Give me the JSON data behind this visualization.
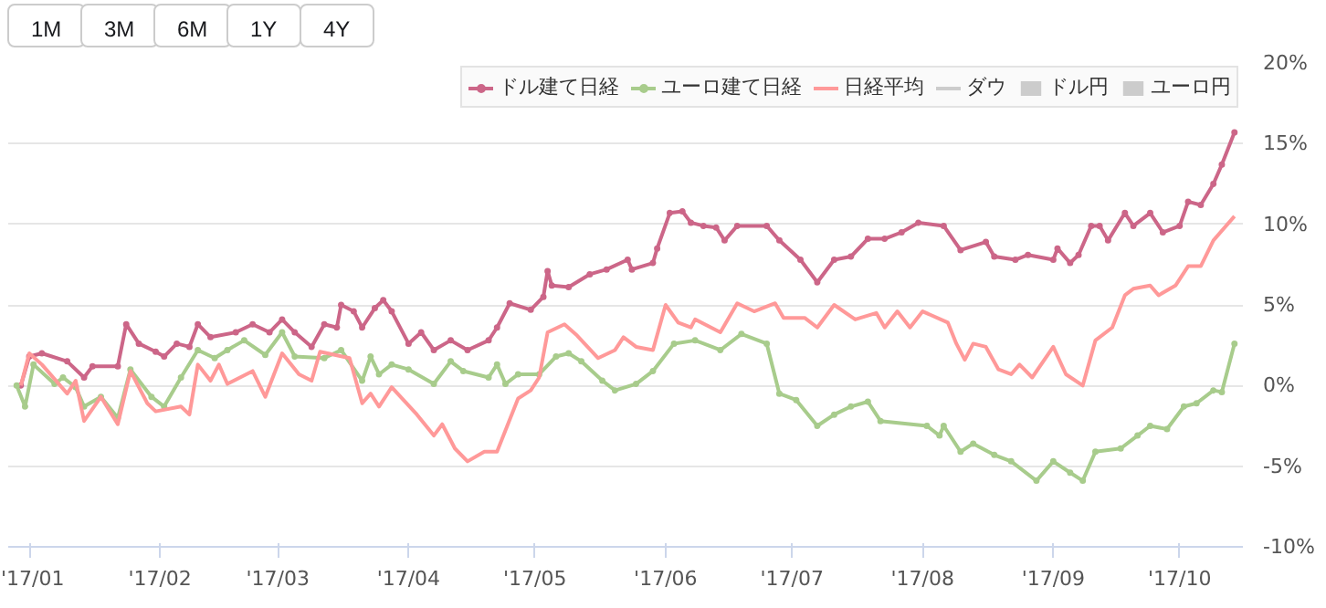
{
  "chart_data": {
    "type": "line",
    "xlim": [
      "2016-12-27",
      "2017-10-16"
    ],
    "ylim": [
      -10,
      20
    ],
    "xticks": [
      {
        "value": "2017-01-01",
        "label": "'17/01"
      },
      {
        "value": "2017-02-01",
        "label": "'17/02"
      },
      {
        "value": "2017-03-01",
        "label": "'17/03"
      },
      {
        "value": "2017-04-01",
        "label": "'17/04"
      },
      {
        "value": "2017-05-01",
        "label": "'17/05"
      },
      {
        "value": "2017-06-01",
        "label": "'17/06"
      },
      {
        "value": "2017-07-01",
        "label": "'17/07"
      },
      {
        "value": "2017-08-01",
        "label": "'17/08"
      },
      {
        "value": "2017-09-01",
        "label": "'17/09"
      },
      {
        "value": "2017-10-01",
        "label": "'17/10"
      }
    ],
    "yticks": [
      {
        "value": -10,
        "label": "-10%"
      },
      {
        "value": -5,
        "label": "-5%"
      },
      {
        "value": 0,
        "label": "0%"
      },
      {
        "value": 5,
        "label": "5%"
      },
      {
        "value": 10,
        "label": "10%"
      },
      {
        "value": 15,
        "label": "15%"
      },
      {
        "value": 20,
        "label": "20%"
      }
    ],
    "grid": "y",
    "legend": "top right",
    "annotations": [
      "1M",
      "3M",
      "6M",
      "1Y",
      "4Y"
    ],
    "series": [
      {
        "name": "ドル建て日経",
        "color": "#cc6688",
        "marker": "circle",
        "x": [
          "2016-12-30",
          "2017-01-01",
          "2017-01-04",
          "2017-01-10",
          "2017-01-14",
          "2017-01-16",
          "2017-01-22",
          "2017-01-24",
          "2017-01-27",
          "2017-01-31",
          "2017-02-02",
          "2017-02-05",
          "2017-02-08",
          "2017-02-10",
          "2017-02-13",
          "2017-02-19",
          "2017-02-23",
          "2017-02-27",
          "2017-03-02",
          "2017-03-05",
          "2017-03-09",
          "2017-03-12",
          "2017-03-15",
          "2017-03-16",
          "2017-03-19",
          "2017-03-21",
          "2017-03-24",
          "2017-03-26",
          "2017-03-28",
          "2017-04-01",
          "2017-04-04",
          "2017-04-07",
          "2017-04-11",
          "2017-04-15",
          "2017-04-20",
          "2017-04-22",
          "2017-04-25",
          "2017-04-30",
          "2017-05-03",
          "2017-05-04",
          "2017-05-05",
          "2017-05-09",
          "2017-05-14",
          "2017-05-18",
          "2017-05-23",
          "2017-05-24",
          "2017-05-29",
          "2017-05-30",
          "2017-06-02",
          "2017-06-05",
          "2017-06-07",
          "2017-06-10",
          "2017-06-13",
          "2017-06-15",
          "2017-06-18",
          "2017-06-25",
          "2017-06-28",
          "2017-07-03",
          "2017-07-07",
          "2017-07-11",
          "2017-07-15",
          "2017-07-19",
          "2017-07-23",
          "2017-07-27",
          "2017-07-31",
          "2017-08-06",
          "2017-08-10",
          "2017-08-16",
          "2017-08-18",
          "2017-08-23",
          "2017-08-26",
          "2017-09-01",
          "2017-09-02",
          "2017-09-05",
          "2017-09-07",
          "2017-09-10",
          "2017-09-12",
          "2017-09-14",
          "2017-09-18",
          "2017-09-20",
          "2017-09-24",
          "2017-09-27",
          "2017-10-01",
          "2017-10-03",
          "2017-10-06",
          "2017-10-09",
          "2017-10-11",
          "2017-10-14"
        ],
        "values": [
          0,
          1.8,
          2.0,
          1.5,
          0.5,
          1.2,
          1.2,
          3.8,
          2.6,
          2.1,
          1.8,
          2.6,
          2.4,
          3.8,
          3.0,
          3.3,
          3.8,
          3.3,
          4.1,
          3.3,
          2.4,
          3.8,
          3.6,
          5.0,
          4.6,
          3.6,
          4.8,
          5.3,
          4.6,
          2.6,
          3.3,
          2.2,
          2.8,
          2.2,
          2.8,
          3.6,
          5.1,
          4.7,
          5.5,
          7.1,
          6.2,
          6.1,
          6.9,
          7.2,
          7.8,
          7.2,
          7.6,
          8.5,
          10.7,
          10.8,
          10.1,
          9.9,
          9.8,
          9.0,
          9.9,
          9.9,
          9.0,
          7.8,
          6.4,
          7.8,
          8.0,
          9.1,
          9.1,
          9.5,
          10.1,
          9.9,
          8.4,
          8.9,
          8.0,
          7.8,
          8.1,
          7.8,
          8.5,
          7.6,
          8.1,
          9.9,
          9.9,
          9.0,
          10.7,
          9.9,
          10.7,
          9.5,
          9.9,
          11.4,
          11.2,
          12.5,
          13.7,
          15.7
        ]
      },
      {
        "name": "ユーロ建て日経",
        "color": "#a8cc8c",
        "marker": "circle",
        "x": [
          "2016-12-29",
          "2016-12-31",
          "2017-01-02",
          "2017-01-07",
          "2017-01-09",
          "2017-01-12",
          "2017-01-14",
          "2017-01-18",
          "2017-01-22",
          "2017-01-25",
          "2017-01-30",
          "2017-02-02",
          "2017-02-06",
          "2017-02-10",
          "2017-02-14",
          "2017-02-17",
          "2017-02-21",
          "2017-02-26",
          "2017-03-02",
          "2017-03-05",
          "2017-03-12",
          "2017-03-16",
          "2017-03-21",
          "2017-03-23",
          "2017-03-25",
          "2017-03-28",
          "2017-04-01",
          "2017-04-07",
          "2017-04-11",
          "2017-04-14",
          "2017-04-20",
          "2017-04-22",
          "2017-04-24",
          "2017-04-27",
          "2017-05-02",
          "2017-05-06",
          "2017-05-09",
          "2017-05-12",
          "2017-05-17",
          "2017-05-20",
          "2017-05-25",
          "2017-05-29",
          "2017-06-03",
          "2017-06-08",
          "2017-06-14",
          "2017-06-19",
          "2017-06-25",
          "2017-06-28",
          "2017-07-02",
          "2017-07-07",
          "2017-07-11",
          "2017-07-15",
          "2017-07-19",
          "2017-07-22",
          "2017-08-02",
          "2017-08-05",
          "2017-08-06",
          "2017-08-10",
          "2017-08-13",
          "2017-08-18",
          "2017-08-22",
          "2017-08-28",
          "2017-09-01",
          "2017-09-05",
          "2017-09-08",
          "2017-09-11",
          "2017-09-17",
          "2017-09-21",
          "2017-09-24",
          "2017-09-28",
          "2017-10-02",
          "2017-10-05",
          "2017-10-09",
          "2017-10-11",
          "2017-10-14"
        ],
        "values": [
          0,
          -1.3,
          1.3,
          0.1,
          0.5,
          -0.1,
          -1.3,
          -0.7,
          -2.0,
          1.0,
          -0.7,
          -1.3,
          0.5,
          2.2,
          1.7,
          2.2,
          2.8,
          1.9,
          3.3,
          1.8,
          1.7,
          2.2,
          0.3,
          1.8,
          0.7,
          1.3,
          1.0,
          0.1,
          1.5,
          0.9,
          0.5,
          1.3,
          0.1,
          0.7,
          0.7,
          1.8,
          2.0,
          1.5,
          0.3,
          -0.3,
          0.1,
          0.9,
          2.6,
          2.8,
          2.2,
          3.2,
          2.6,
          -0.5,
          -0.9,
          -2.5,
          -1.8,
          -1.3,
          -1.0,
          -2.2,
          -2.5,
          -3.1,
          -2.5,
          -4.1,
          -3.6,
          -4.3,
          -4.7,
          -5.9,
          -4.7,
          -5.4,
          -5.9,
          -4.1,
          -3.9,
          -3.1,
          -2.5,
          -2.7,
          -1.3,
          -1.1,
          -0.3,
          -0.4,
          2.6
        ]
      },
      {
        "name": "日経平均",
        "color": "#ff9999",
        "x": [
          "2016-12-30",
          "2017-01-01",
          "2017-01-04",
          "2017-01-10",
          "2017-01-12",
          "2017-01-14",
          "2017-01-18",
          "2017-01-22",
          "2017-01-25",
          "2017-01-29",
          "2017-01-31",
          "2017-02-06",
          "2017-02-08",
          "2017-02-10",
          "2017-02-13",
          "2017-02-15",
          "2017-02-17",
          "2017-02-23",
          "2017-02-26",
          "2017-03-02",
          "2017-03-06",
          "2017-03-09",
          "2017-03-11",
          "2017-03-18",
          "2017-03-21",
          "2017-03-23",
          "2017-03-25",
          "2017-03-28",
          "2017-04-03",
          "2017-04-07",
          "2017-04-09",
          "2017-04-12",
          "2017-04-15",
          "2017-04-19",
          "2017-04-22",
          "2017-04-27",
          "2017-04-30",
          "2017-05-02",
          "2017-05-04",
          "2017-05-08",
          "2017-05-11",
          "2017-05-16",
          "2017-05-20",
          "2017-05-22",
          "2017-05-25",
          "2017-05-29",
          "2017-06-01",
          "2017-06-04",
          "2017-06-07",
          "2017-06-08",
          "2017-06-14",
          "2017-06-18",
          "2017-06-22",
          "2017-06-27",
          "2017-06-29",
          "2017-07-04",
          "2017-07-07",
          "2017-07-11",
          "2017-07-16",
          "2017-07-21",
          "2017-07-23",
          "2017-07-26",
          "2017-07-29",
          "2017-08-01",
          "2017-08-07",
          "2017-08-09",
          "2017-08-11",
          "2017-08-13",
          "2017-08-16",
          "2017-08-19",
          "2017-08-22",
          "2017-08-24",
          "2017-08-27",
          "2017-09-01",
          "2017-09-04",
          "2017-09-08",
          "2017-09-11",
          "2017-09-15",
          "2017-09-18",
          "2017-09-20",
          "2017-09-24",
          "2017-09-26",
          "2017-09-30",
          "2017-10-03",
          "2017-10-06",
          "2017-10-09",
          "2017-10-14"
        ],
        "values": [
          0,
          2.0,
          1.3,
          -0.5,
          0.3,
          -2.2,
          -0.7,
          -2.4,
          0.9,
          -1.1,
          -1.6,
          -1.3,
          -1.8,
          1.3,
          0.3,
          1.3,
          0.1,
          0.9,
          -0.7,
          2.0,
          0.7,
          0.3,
          2.1,
          1.7,
          -1.1,
          -0.5,
          -1.3,
          -0.1,
          -1.8,
          -3.1,
          -2.4,
          -3.9,
          -4.7,
          -4.1,
          -4.1,
          -0.8,
          -0.3,
          0.5,
          3.3,
          3.8,
          3.1,
          1.7,
          2.2,
          3.0,
          2.4,
          2.2,
          5.0,
          3.9,
          3.6,
          4.1,
          3.3,
          5.1,
          4.6,
          5.1,
          4.2,
          4.2,
          3.6,
          5.0,
          4.1,
          4.5,
          3.6,
          4.6,
          3.6,
          4.6,
          3.9,
          2.6,
          1.6,
          2.6,
          2.4,
          1.0,
          0.7,
          1.3,
          0.5,
          2.4,
          0.7,
          0.0,
          2.8,
          3.6,
          5.6,
          6.0,
          6.2,
          5.6,
          6.2,
          7.4,
          7.4,
          9.0,
          10.5
        ]
      },
      {
        "name": "ダウ",
        "color": "#cccccc"
      },
      {
        "name": "ドル円",
        "type": "area",
        "color": "#cccccc"
      },
      {
        "name": "ユーロ円",
        "type": "area",
        "color": "#cccccc"
      }
    ]
  }
}
